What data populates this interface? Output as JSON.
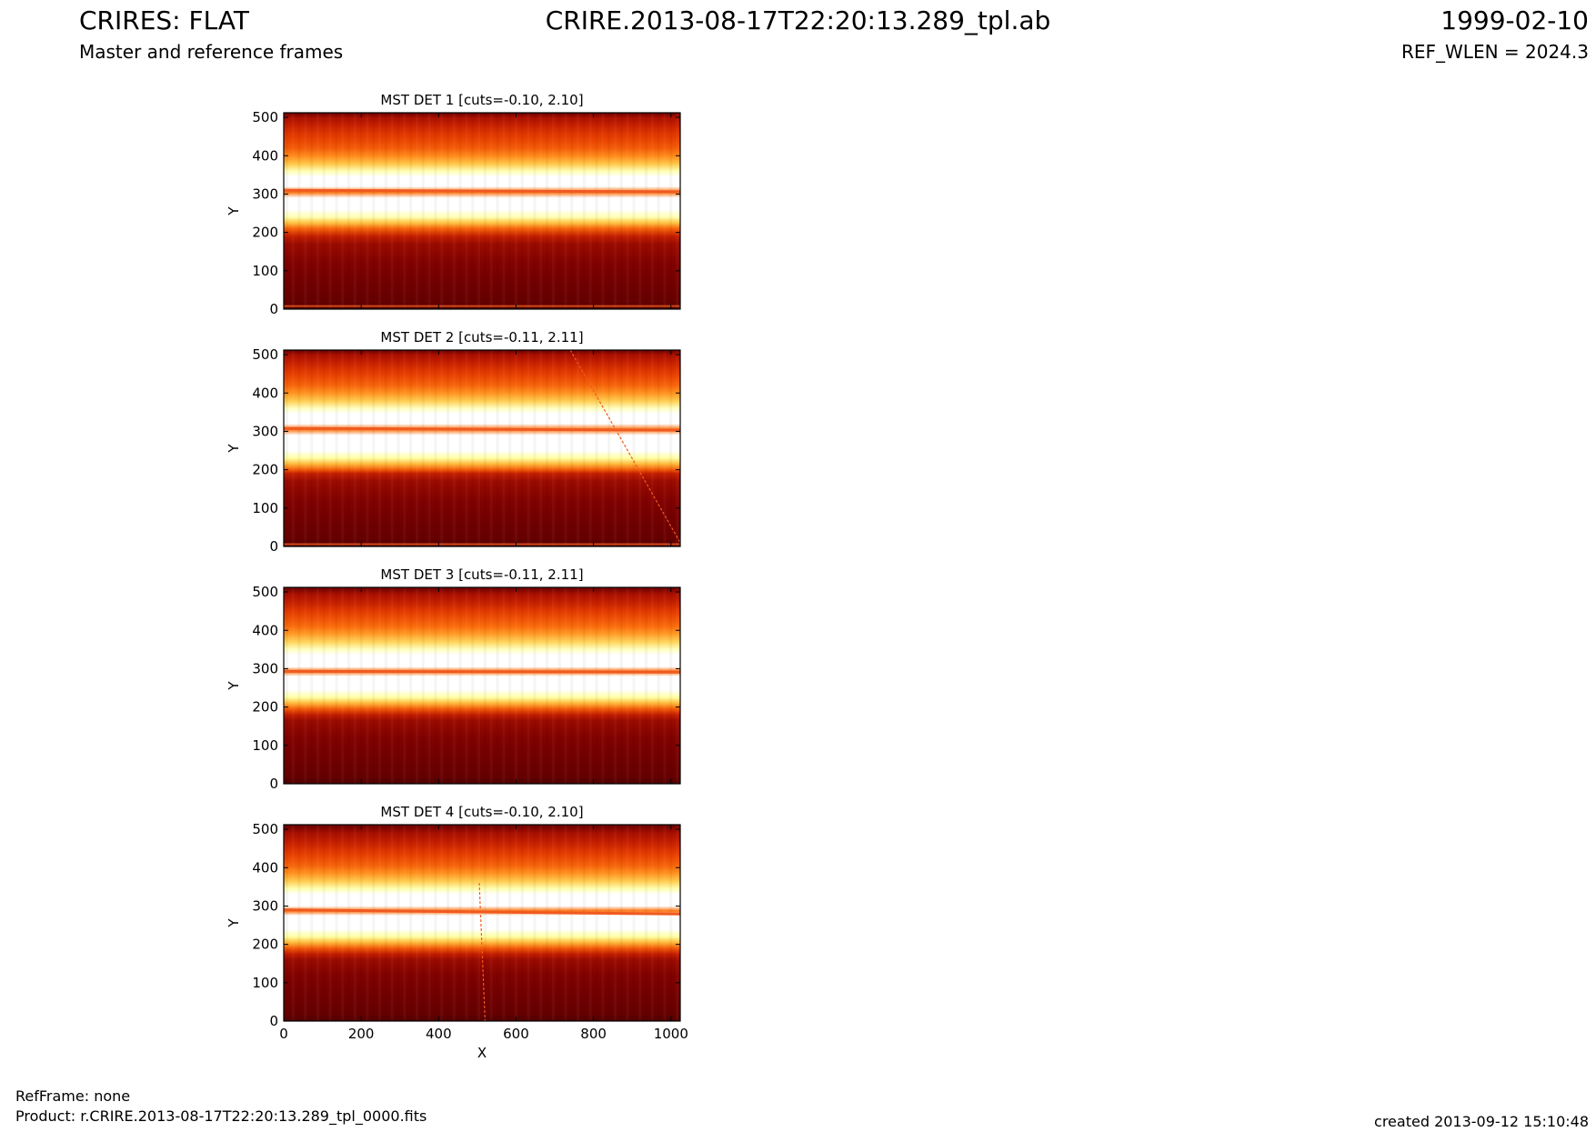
{
  "header": {
    "title_left": "CRIRES: FLAT",
    "title_center": "CRIRE.2013-08-17T22:20:13.289_tpl.ab",
    "title_right": "1999-02-10",
    "subtitle_left": "Master and reference frames",
    "subtitle_right": "REF_WLEN = 2024.3"
  },
  "footer": {
    "refframe": "RefFrame: none",
    "product": "Product: r.CRIRE.2013-08-17T22:20:13.289_tpl_0000.fits",
    "created": "created 2013-09-12 15:10:48"
  },
  "colors": {
    "colormap": [
      "#3a0000",
      "#7a0000",
      "#b81400",
      "#e63c00",
      "#ff7a10",
      "#ffc040",
      "#ffff90",
      "#ffffff"
    ],
    "trace": "#f05a20"
  },
  "chart_data": [
    {
      "type": "heatmap",
      "title": "MST DET 1 [cuts=-0.10, 2.10]",
      "xlabel": "",
      "ylabel": "Y",
      "xlim": [
        0,
        1024
      ],
      "ylim": [
        0,
        512
      ],
      "xticks": [
        0,
        200,
        400,
        600,
        800,
        1000
      ],
      "yticks": [
        0,
        100,
        200,
        300,
        400,
        500
      ],
      "xtick_labels_visible": false,
      "profile_y": [
        0,
        20,
        60,
        120,
        170,
        190,
        210,
        225,
        240,
        260,
        290,
        305,
        320,
        345,
        360,
        380,
        400,
        420,
        440,
        460,
        480,
        500,
        512
      ],
      "profile_v": [
        0.05,
        0.1,
        0.12,
        0.16,
        0.22,
        0.32,
        0.52,
        0.72,
        0.9,
        1.0,
        1.0,
        0.55,
        1.0,
        1.0,
        0.9,
        0.72,
        0.6,
        0.5,
        0.45,
        0.4,
        0.33,
        0.25,
        0.1
      ],
      "bottom_streak_y": 8,
      "trace_line": {
        "x": [
          0,
          1024
        ],
        "y": [
          310,
          306
        ]
      },
      "diagonal_line": null
    },
    {
      "type": "heatmap",
      "title": "MST DET 2 [cuts=-0.11, 2.11]",
      "xlabel": "",
      "ylabel": "Y",
      "xlim": [
        0,
        1024
      ],
      "ylim": [
        0,
        512
      ],
      "xticks": [
        0,
        200,
        400,
        600,
        800,
        1000
      ],
      "yticks": [
        0,
        100,
        200,
        300,
        400,
        500
      ],
      "xtick_labels_visible": false,
      "profile_y": [
        0,
        20,
        60,
        120,
        170,
        190,
        200,
        215,
        230,
        250,
        290,
        305,
        320,
        345,
        360,
        380,
        400,
        420,
        440,
        460,
        480,
        500,
        512
      ],
      "profile_v": [
        0.05,
        0.1,
        0.12,
        0.16,
        0.22,
        0.32,
        0.5,
        0.7,
        0.88,
        1.0,
        1.0,
        0.55,
        1.0,
        1.0,
        0.92,
        0.74,
        0.62,
        0.52,
        0.46,
        0.4,
        0.33,
        0.25,
        0.1
      ],
      "bottom_streak_y": 6,
      "trace_line": {
        "x": [
          0,
          1024
        ],
        "y": [
          308,
          303
        ]
      },
      "diagonal_line": {
        "x": [
          740,
          1024
        ],
        "y": [
          512,
          10
        ]
      }
    },
    {
      "type": "heatmap",
      "title": "MST DET 3 [cuts=-0.11, 2.11]",
      "xlabel": "",
      "ylabel": "Y",
      "xlim": [
        0,
        1024
      ],
      "ylim": [
        0,
        512
      ],
      "xticks": [
        0,
        200,
        400,
        600,
        800,
        1000
      ],
      "yticks": [
        0,
        100,
        200,
        300,
        400,
        500
      ],
      "xtick_labels_visible": false,
      "profile_y": [
        0,
        20,
        60,
        120,
        165,
        180,
        195,
        210,
        225,
        245,
        280,
        293,
        305,
        335,
        350,
        370,
        390,
        410,
        430,
        450,
        470,
        495,
        512
      ],
      "profile_v": [
        0.05,
        0.1,
        0.12,
        0.16,
        0.22,
        0.32,
        0.5,
        0.7,
        0.88,
        1.0,
        1.0,
        0.55,
        1.0,
        1.0,
        0.92,
        0.76,
        0.64,
        0.54,
        0.48,
        0.42,
        0.34,
        0.25,
        0.1
      ],
      "bottom_streak_y": null,
      "trace_line": {
        "x": [
          0,
          1024
        ],
        "y": [
          293,
          291
        ]
      },
      "diagonal_line": null
    },
    {
      "type": "heatmap",
      "title": "MST DET 4 [cuts=-0.10, 2.10]",
      "xlabel": "X",
      "ylabel": "Y",
      "xlim": [
        0,
        1024
      ],
      "ylim": [
        0,
        512
      ],
      "xticks": [
        0,
        200,
        400,
        600,
        800,
        1000
      ],
      "yticks": [
        0,
        100,
        200,
        300,
        400,
        500
      ],
      "xtick_labels_visible": true,
      "profile_y": [
        0,
        20,
        60,
        120,
        160,
        175,
        190,
        205,
        220,
        240,
        275,
        287,
        300,
        330,
        345,
        365,
        385,
        405,
        425,
        445,
        465,
        490,
        512
      ],
      "profile_v": [
        0.05,
        0.1,
        0.12,
        0.16,
        0.22,
        0.32,
        0.5,
        0.7,
        0.88,
        1.0,
        1.0,
        0.55,
        1.0,
        1.0,
        0.9,
        0.74,
        0.62,
        0.52,
        0.46,
        0.4,
        0.33,
        0.25,
        0.1
      ],
      "bottom_streak_y": null,
      "trace_line": {
        "x": [
          0,
          1024
        ],
        "y": [
          290,
          279
        ]
      },
      "diagonal_line": {
        "x": [
          505,
          520
        ],
        "y": [
          360,
          0
        ]
      }
    }
  ]
}
